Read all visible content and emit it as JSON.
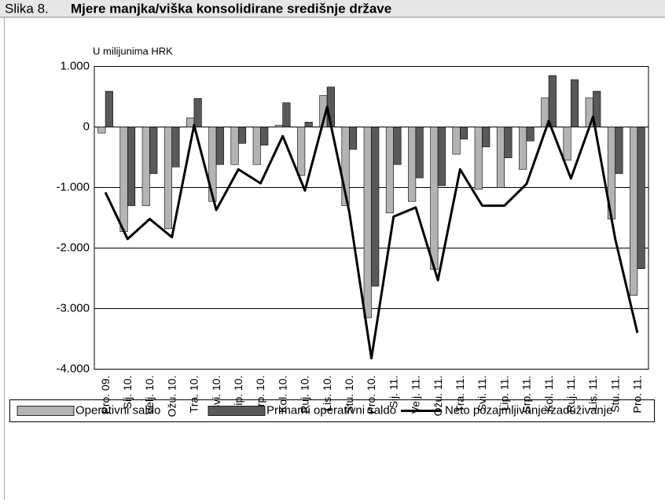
{
  "chart_data": {
    "type": "bar_line",
    "figure_label": "Slika 8.",
    "title": "Mjere manjka/viška konsolidirane središnje države",
    "y_label": "U milijunima HRK",
    "categories": [
      "Pro. 09.",
      "Sij. 10.",
      "Velj. 10.",
      "Ožu. 10.",
      "Tra. 10.",
      "Svi. 10.",
      "Lip. 10.",
      "Srp. 10.",
      "Kol. 10.",
      "Ruj. 10.",
      "Lis. 10.",
      "Stu. 10.",
      "Pro. 10.",
      "Sij. 11.",
      "Velj. 11.",
      "Ožu. 11.",
      "Tra. 11.",
      "Svi. 11.",
      "Lip. 11.",
      "Srp. 11.",
      "Kol. 11.",
      "Ruj. 11.",
      "Lis. 11.",
      "Stu. 11.",
      "Pro. 11."
    ],
    "series": [
      {
        "name": "Operativni saldo",
        "kind": "bar",
        "color": "#b3b3b3",
        "values": [
          -100,
          -1730,
          -1300,
          -1680,
          150,
          -1230,
          -620,
          -620,
          30,
          -800,
          520,
          -1300,
          -3150,
          -1420,
          -1230,
          -2350,
          -450,
          -1030,
          -1000,
          -700,
          480,
          -550,
          480,
          -1520,
          -2780
        ]
      },
      {
        "name": "Primarni operativni saldo",
        "kind": "bar",
        "color": "#595959",
        "values": [
          590,
          -1300,
          -770,
          -660,
          470,
          -620,
          -270,
          -300,
          400,
          80,
          660,
          -370,
          -2630,
          -620,
          -840,
          -970,
          -200,
          -330,
          -510,
          -230,
          850,
          780,
          590,
          -770,
          -2340
        ]
      },
      {
        "name": "Neto pozajmljivanje/zaduživanje",
        "kind": "line",
        "color": "#000000",
        "values": [
          -1080,
          -1850,
          -1520,
          -1820,
          30,
          -1370,
          -700,
          -930,
          -150,
          -1050,
          330,
          -1400,
          -3820,
          -1480,
          -1330,
          -2530,
          -700,
          -1300,
          -1300,
          -940,
          100,
          -850,
          170,
          -1850,
          -3400
        ]
      }
    ],
    "ylim": [
      -4000,
      1000
    ],
    "yticks": [
      {
        "value": -4000,
        "label": "-4.000"
      },
      {
        "value": -3000,
        "label": "-3.000"
      },
      {
        "value": -2000,
        "label": "-2.000"
      },
      {
        "value": -1000,
        "label": "-1.000"
      },
      0,
      {
        "value": 1000,
        "label": "1.000"
      }
    ],
    "grid": true
  }
}
